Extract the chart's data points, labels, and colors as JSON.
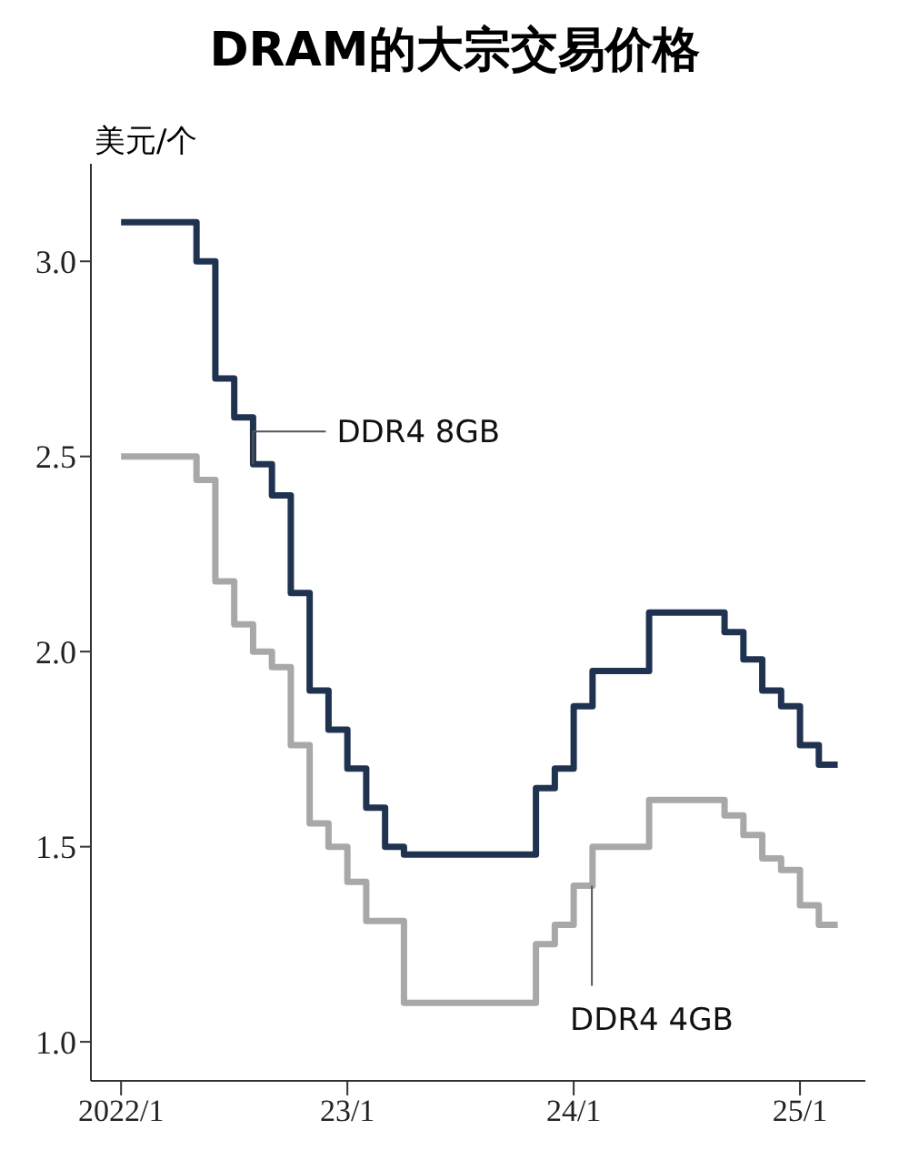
{
  "chart_data": {
    "type": "step",
    "title": "DRAM的大宗交易价格",
    "ylabel": "美元/个",
    "x": [
      "2022-01",
      "2022-02",
      "2022-03",
      "2022-04",
      "2022-05",
      "2022-06",
      "2022-07",
      "2022-08",
      "2022-09",
      "2022-10",
      "2022-11",
      "2022-12",
      "2023-01",
      "2023-02",
      "2023-03",
      "2023-04",
      "2023-05",
      "2023-06",
      "2023-07",
      "2023-08",
      "2023-09",
      "2023-10",
      "2023-11",
      "2023-12",
      "2024-01",
      "2024-02",
      "2024-03",
      "2024-04",
      "2024-05",
      "2024-06",
      "2024-07",
      "2024-08",
      "2024-09",
      "2024-10",
      "2024-11",
      "2024-12",
      "2025-01",
      "2025-02",
      "2025-03"
    ],
    "series": [
      {
        "name": "DDR4 8GB",
        "color": "#1f3350",
        "values": [
          3.1,
          3.1,
          3.1,
          3.1,
          3.0,
          2.7,
          2.6,
          2.48,
          2.4,
          2.15,
          1.9,
          1.8,
          1.7,
          1.6,
          1.5,
          1.48,
          1.48,
          1.48,
          1.48,
          1.48,
          1.48,
          1.48,
          1.65,
          1.7,
          1.86,
          1.95,
          1.95,
          1.95,
          2.1,
          2.1,
          2.1,
          2.1,
          2.05,
          1.98,
          1.9,
          1.86,
          1.76,
          1.71,
          1.71
        ]
      },
      {
        "name": "DDR4 4GB",
        "color": "#a8a8a8",
        "values": [
          2.5,
          2.5,
          2.5,
          2.5,
          2.44,
          2.18,
          2.07,
          2.0,
          1.96,
          1.76,
          1.56,
          1.5,
          1.41,
          1.31,
          1.31,
          1.1,
          1.1,
          1.1,
          1.1,
          1.1,
          1.1,
          1.1,
          1.25,
          1.3,
          1.4,
          1.5,
          1.5,
          1.5,
          1.62,
          1.62,
          1.62,
          1.62,
          1.58,
          1.53,
          1.47,
          1.44,
          1.35,
          1.3,
          1.3
        ]
      }
    ],
    "xlim": [
      "2021-11-13",
      "2025-04-15"
    ],
    "xticks": [
      {
        "value": "2022-01",
        "label": "2022/1"
      },
      {
        "value": "2023-01",
        "label": "23/1"
      },
      {
        "value": "2024-01",
        "label": "24/1"
      },
      {
        "value": "2025-01",
        "label": "25/1"
      }
    ],
    "ylim": [
      0.9,
      3.25
    ],
    "yticks": [
      {
        "value": 1.0,
        "label": "1.0"
      },
      {
        "value": 1.5,
        "label": "1.5"
      },
      {
        "value": 2.0,
        "label": "2.0"
      },
      {
        "value": 2.5,
        "label": "2.5"
      },
      {
        "value": 3.0,
        "label": "3.0"
      }
    ],
    "grid": false
  }
}
